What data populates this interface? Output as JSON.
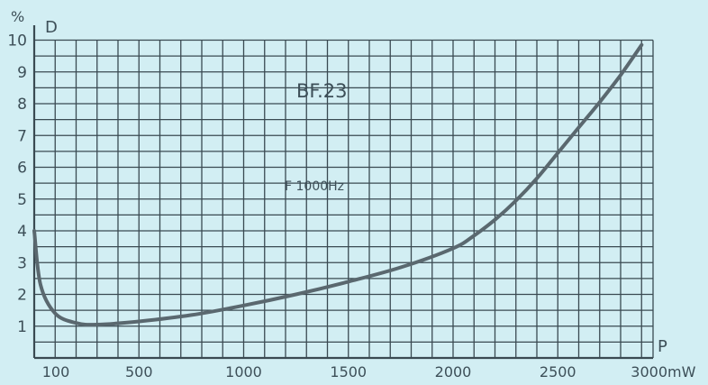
{
  "chart_data": {
    "type": "line",
    "title": "BF.23",
    "annotation": "F 1000Hz",
    "y_unit": "%",
    "ylabel": "D",
    "xlabel": "P",
    "x_unit": "mW",
    "x_ticks": [
      "100",
      "500",
      "1000",
      "1500",
      "2000",
      "2500",
      "3000"
    ],
    "y_ticks": [
      "1",
      "2",
      "3",
      "4",
      "5",
      "6",
      "7",
      "8",
      "9",
      "10"
    ],
    "xlim": [
      0,
      3000
    ],
    "ylim": [
      0,
      10
    ],
    "grid": true,
    "series": [
      {
        "x": [
          0,
          30,
          100,
          200,
          300,
          500,
          750,
          1000,
          1250,
          1500,
          1750,
          2000,
          2100,
          2200,
          2300,
          2400,
          2500,
          2600,
          2700,
          2800,
          2900
        ],
        "y": [
          4.0,
          2.3,
          1.4,
          1.1,
          1.05,
          1.15,
          1.35,
          1.65,
          2.0,
          2.4,
          2.85,
          3.45,
          3.85,
          4.35,
          4.95,
          5.65,
          6.45,
          7.25,
          8.05,
          8.9,
          9.85
        ]
      }
    ]
  },
  "colors": {
    "background": "#d2eef3",
    "ink": "#3a4a52",
    "curve": "#5a686f"
  }
}
